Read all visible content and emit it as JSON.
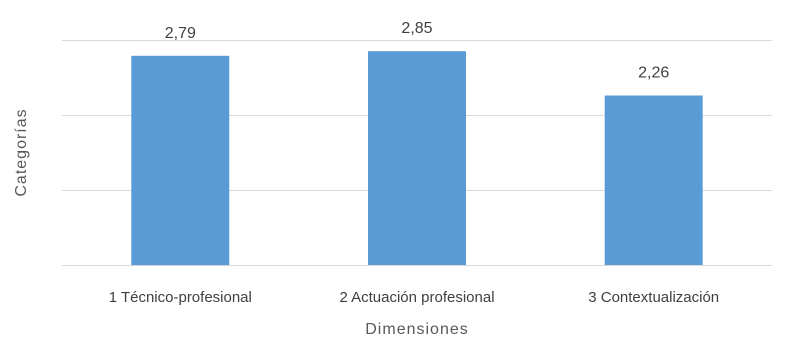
{
  "chart_data": {
    "type": "bar",
    "title": "",
    "xlabel": "Dimensiones",
    "ylabel": "Categorías",
    "categories": [
      "1 Técnico-profesional",
      "2 Actuación profesional",
      "3 Contextualización"
    ],
    "series": [
      {
        "values": [
          2.79,
          2.85,
          2.26
        ],
        "value_labels": [
          "2,79",
          "2,85",
          "2,26"
        ],
        "color": "#5b9bd5"
      }
    ],
    "ylim": [
      0,
      3
    ],
    "grid": true,
    "legend": "none"
  }
}
